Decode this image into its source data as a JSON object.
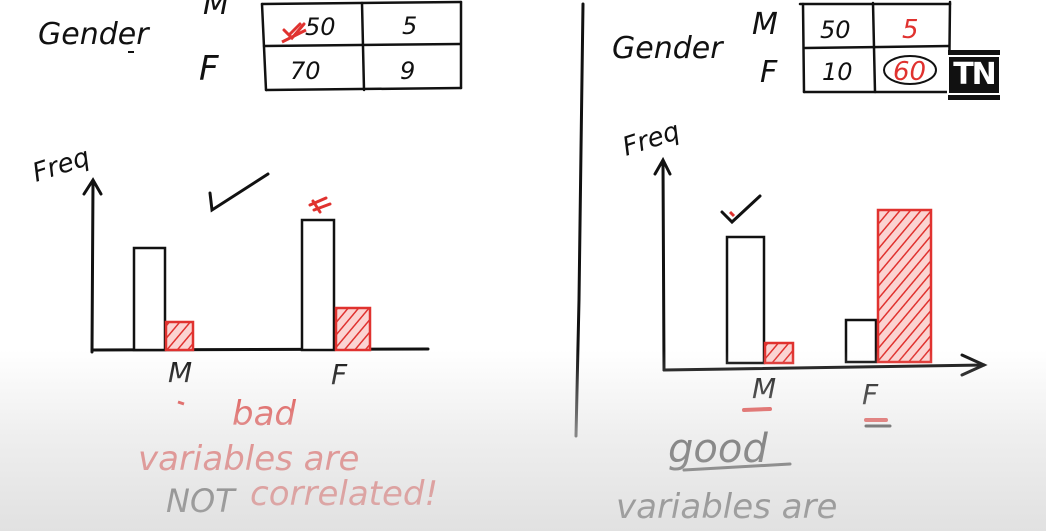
{
  "colors": {
    "ink": "#111111",
    "accent": "#e0322f",
    "background": "#ffffff"
  },
  "logo": {
    "text": "TN"
  },
  "left_panel": {
    "row_label": "Gender",
    "rows": [
      "M",
      "F"
    ],
    "table": [
      [
        "50",
        "5"
      ],
      [
        "70",
        "9"
      ]
    ],
    "y_axis_label": "Freq",
    "x_categories": [
      "M",
      "F"
    ],
    "caption_1": "bad",
    "caption_2": "variables are",
    "caption_3a": "NOT",
    "caption_3b": "correlated!"
  },
  "right_panel": {
    "row_label": "Gender",
    "rows": [
      "M",
      "F"
    ],
    "table": [
      [
        "50",
        "5"
      ],
      [
        "10",
        "60"
      ]
    ],
    "y_axis_label": "Freq",
    "x_categories": [
      "M",
      "F"
    ],
    "caption_1": "good",
    "caption_2": "variables are"
  }
}
